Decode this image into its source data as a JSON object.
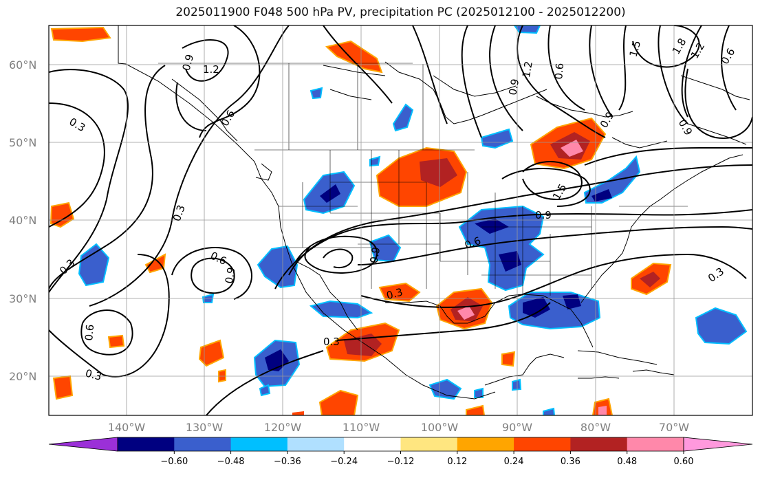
{
  "title": "2025011900 F048 500 hPa PV, precipitation PC (2025012100 - 2025012200)",
  "map": {
    "lon_range": [
      -150,
      -62
    ],
    "lat_range": [
      15,
      65
    ],
    "lat_ticks": [
      "20°N",
      "30°N",
      "40°N",
      "50°N",
      "60°N"
    ],
    "lon_ticks": [
      "140°W",
      "130°W",
      "120°W",
      "110°W",
      "100°W",
      "90°W",
      "80°W",
      "70°W"
    ],
    "grid": true
  },
  "pv_contours": {
    "labels": [
      "0.3",
      "0.3",
      "0.3",
      "0.3",
      "0.3",
      "0.3",
      "0.3",
      "0.6",
      "0.6",
      "0.6",
      "0.6",
      "0.6",
      "0.9",
      "0.9",
      "0.9",
      "0.9",
      "0.9",
      "0.9",
      "1.2",
      "1.2",
      "1.2",
      "1.5",
      "1.5",
      "1.8",
      "0.6",
      "0.9"
    ]
  },
  "colorbar": {
    "colors": [
      "#9b30d8",
      "#000080",
      "#3a5fcd",
      "#00bfff",
      "#b0e0ff",
      "#ffffff",
      "#ffe680",
      "#ffa500",
      "#ff4500",
      "#b22222",
      "#ff88aa",
      "#ff99dd"
    ],
    "tick_labels": [
      "−0.60",
      "−0.48",
      "−0.36",
      "−0.24",
      "−0.12",
      "0.12",
      "0.24",
      "0.36",
      "0.48",
      "0.60"
    ],
    "extend": "both"
  }
}
